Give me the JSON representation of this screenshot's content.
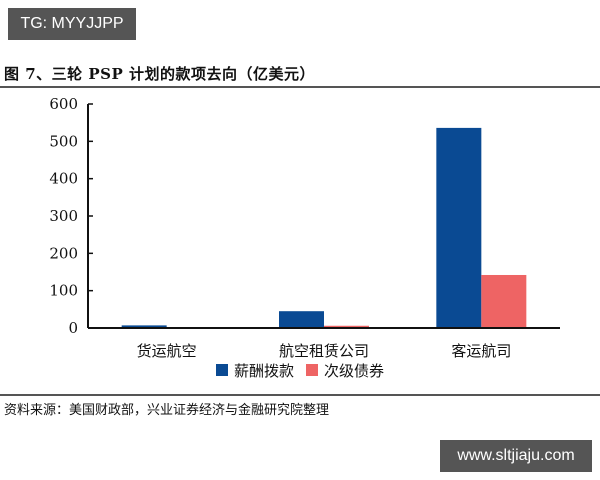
{
  "watermarks": {
    "top": "TG: MYYJJPP",
    "bottom": "www.sltjiaju.com"
  },
  "title": "图 7、三轮 PSP 计划的款项去向（亿美元）",
  "source": "资料来源：美国财政部，兴业证券经济与金融研究院整理",
  "colors": {
    "payroll": "#0a4a93",
    "subordinated": "#ee6464",
    "axis": "#111111"
  },
  "chart_data": {
    "type": "bar",
    "title": "图 7、三轮 PSP 计划的款项去向（亿美元）",
    "xlabel": "",
    "ylabel": "亿美元",
    "ylim": [
      0,
      600
    ],
    "yticks": [
      0,
      100,
      200,
      300,
      400,
      500,
      600
    ],
    "grid": false,
    "legend_position": "bottom",
    "categories": [
      "货运航空",
      "航空租赁公司",
      "客运航司"
    ],
    "series": [
      {
        "name": "薪酬拨款",
        "color": "#0a4a93",
        "values": [
          7,
          45,
          536
        ]
      },
      {
        "name": "次级债券",
        "color": "#ee6464",
        "values": [
          0,
          6,
          142
        ]
      }
    ]
  }
}
